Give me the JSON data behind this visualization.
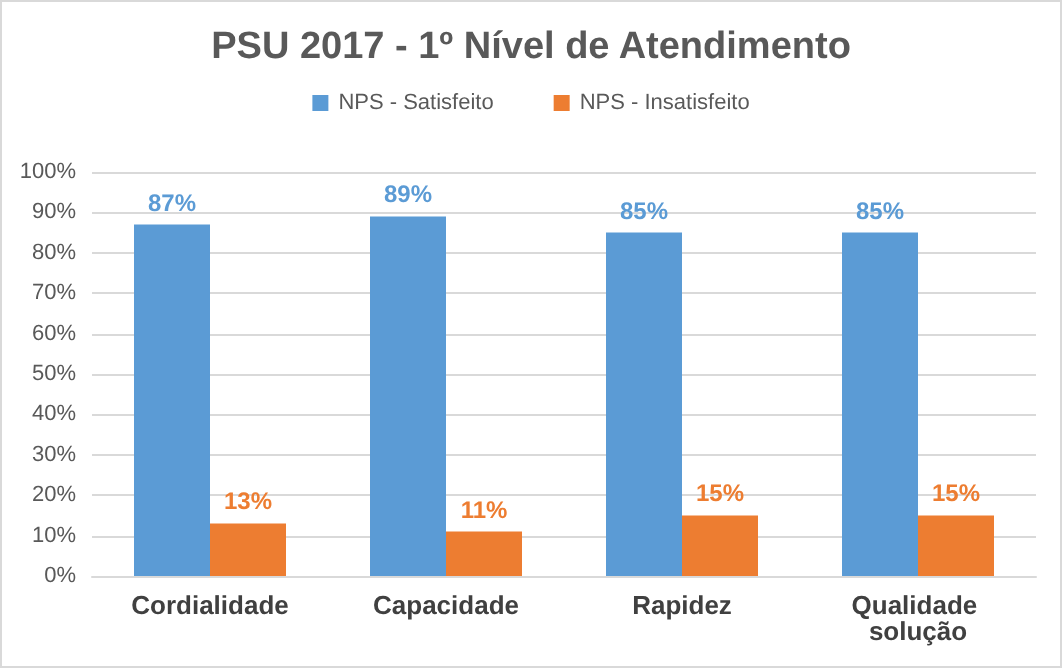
{
  "chart_data": {
    "type": "bar",
    "title": "PSU 2017 - 1º Nível de Atendimento",
    "categories": [
      "Cordialidade",
      "Capacidade",
      "Rapidez",
      "Qualidade solução"
    ],
    "series": [
      {
        "name": "NPS - Satisfeito",
        "color": "#5b9bd5",
        "values": [
          87,
          89,
          85,
          85
        ],
        "value_labels": [
          "87%",
          "89%",
          "85%",
          "85%"
        ]
      },
      {
        "name": "NPS - Insatisfeito",
        "color": "#ed7d31",
        "values": [
          13,
          11,
          15,
          15
        ],
        "value_labels": [
          "13%",
          "11%",
          "15%",
          "15%"
        ]
      }
    ],
    "ylim": [
      0,
      100
    ],
    "yticks": [
      {
        "value": 0,
        "label": "0%"
      },
      {
        "value": 10,
        "label": "10%"
      },
      {
        "value": 20,
        "label": "20%"
      },
      {
        "value": 30,
        "label": "30%"
      },
      {
        "value": 40,
        "label": "40%"
      },
      {
        "value": 50,
        "label": "50%"
      },
      {
        "value": 60,
        "label": "60%"
      },
      {
        "value": 70,
        "label": "70%"
      },
      {
        "value": 80,
        "label": "80%"
      },
      {
        "value": 90,
        "label": "90%"
      },
      {
        "value": 100,
        "label": "100%"
      }
    ],
    "grid": "y",
    "legend": "top"
  }
}
